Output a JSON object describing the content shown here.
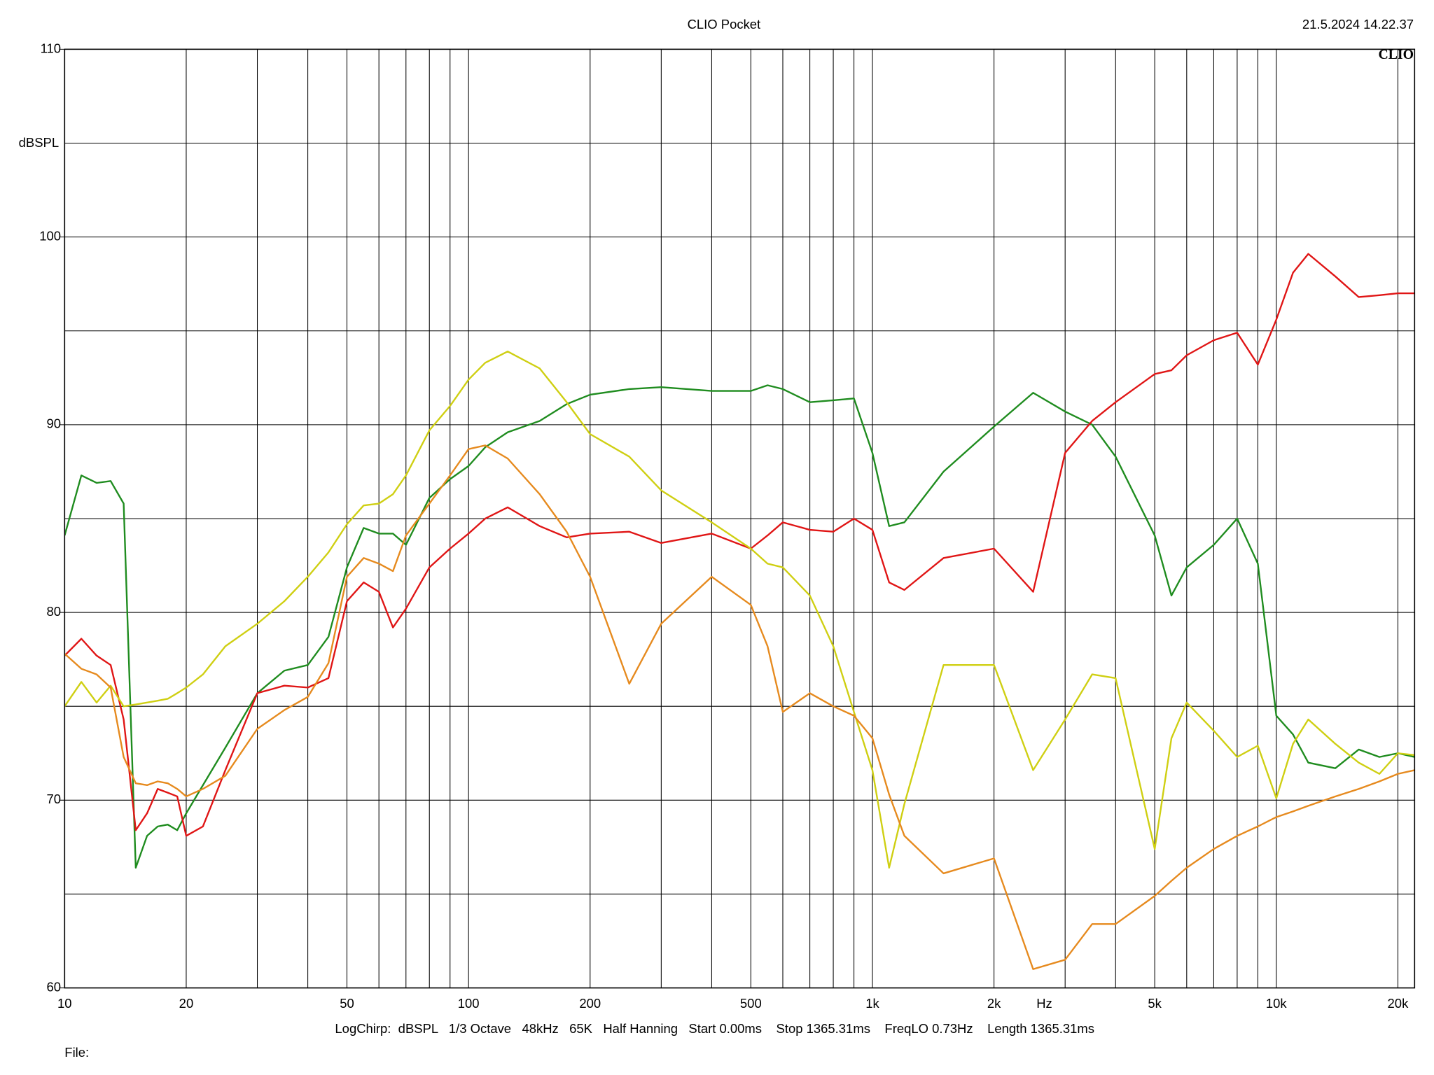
{
  "chart_data": {
    "type": "line",
    "title": "CLIO Pocket",
    "timestamp": "21.5.2024 14.22.37",
    "logo": "CLIO",
    "y_label": "dBSPL",
    "x_unit_label": "Hz",
    "info": "LogChirp:  dBSPL   1/3 Octave   48kHz   65K   Half Hanning   Start 0.00ms    Stop 1365.31ms    FreqLO 0.73Hz    Length 1365.31ms",
    "file_label": "File:",
    "xscale": "log",
    "grid": true,
    "xlim": [
      10,
      22000
    ],
    "ylim": [
      60,
      110
    ],
    "xticks": [
      10,
      20,
      50,
      100,
      200,
      500,
      {
        "value": 1000,
        "label": "1k"
      },
      {
        "value": 2000,
        "label": "2k"
      },
      {
        "value": 5000,
        "label": "5k"
      },
      {
        "value": 10000,
        "label": "10k"
      },
      {
        "value": 20000,
        "label": "20k"
      }
    ],
    "xgrid_minor": [
      30,
      40,
      60,
      70,
      80,
      90,
      300,
      400,
      600,
      700,
      800,
      900,
      3000,
      4000,
      6000,
      7000,
      8000,
      9000
    ],
    "yticks": [
      60,
      70,
      80,
      90,
      100,
      110
    ],
    "ygrid_minor": [
      65,
      75,
      85,
      95,
      105
    ],
    "x": [
      10,
      11,
      12,
      13,
      14,
      15,
      16,
      17,
      18,
      19,
      20,
      22,
      25,
      30,
      35,
      40,
      45,
      50,
      55,
      60,
      65,
      70,
      80,
      90,
      100,
      110,
      125,
      150,
      175,
      200,
      250,
      300,
      400,
      500,
      550,
      600,
      700,
      800,
      900,
      1000,
      1100,
      1200,
      1500,
      2000,
      2500,
      3000,
      3500,
      4000,
      5000,
      5500,
      6000,
      7000,
      8000,
      9000,
      10000,
      11000,
      12000,
      14000,
      16000,
      18000,
      20000,
      22000
    ],
    "series": [
      {
        "name": "green",
        "color": "#1f8c1f",
        "values": [
          84.1,
          87.3,
          86.9,
          87.0,
          85.8,
          66.4,
          68.1,
          68.6,
          68.7,
          68.4,
          69.3,
          70.8,
          72.8,
          75.7,
          76.9,
          77.2,
          78.7,
          82.4,
          84.5,
          84.2,
          84.2,
          83.6,
          86.1,
          87.1,
          87.8,
          88.8,
          89.6,
          90.2,
          91.1,
          91.6,
          91.9,
          92.0,
          91.8,
          91.8,
          92.1,
          91.9,
          91.2,
          91.3,
          91.4,
          88.5,
          84.6,
          84.8,
          87.5,
          89.9,
          91.7,
          90.7,
          90.0,
          88.3,
          84.1,
          80.9,
          82.4,
          83.6,
          85.0,
          82.6,
          74.5,
          73.5,
          72.0,
          71.7,
          72.7,
          72.3,
          72.5,
          72.3
        ]
      },
      {
        "name": "red",
        "color": "#e01515",
        "values": [
          77.7,
          78.6,
          77.7,
          77.2,
          74.3,
          68.4,
          69.3,
          70.6,
          70.4,
          70.2,
          68.1,
          68.6,
          71.6,
          75.7,
          76.1,
          76.0,
          76.5,
          80.6,
          81.6,
          81.1,
          79.2,
          80.2,
          82.4,
          83.4,
          84.2,
          85.0,
          85.6,
          84.6,
          84.0,
          84.2,
          84.3,
          83.7,
          84.2,
          83.4,
          84.1,
          84.8,
          84.4,
          84.3,
          85.0,
          84.4,
          81.6,
          81.2,
          82.9,
          83.4,
          81.1,
          88.5,
          90.2,
          91.2,
          92.7,
          92.9,
          93.7,
          94.5,
          94.9,
          93.2,
          95.6,
          98.1,
          99.1,
          97.9,
          96.8,
          96.9,
          97.0,
          97.0
        ]
      },
      {
        "name": "yellow",
        "color": "#cfcf12",
        "values": [
          75.0,
          76.3,
          75.2,
          76.1,
          75.0,
          75.1,
          75.2,
          75.3,
          75.4,
          75.7,
          76.0,
          76.7,
          78.2,
          79.4,
          80.6,
          81.9,
          83.2,
          84.7,
          85.7,
          85.8,
          86.3,
          87.3,
          89.7,
          91.0,
          92.4,
          93.3,
          93.9,
          93.0,
          91.2,
          89.5,
          88.3,
          86.5,
          84.8,
          83.4,
          82.6,
          82.4,
          80.9,
          78.2,
          74.7,
          71.6,
          66.4,
          69.8,
          77.2,
          77.2,
          71.6,
          74.3,
          76.7,
          76.5,
          67.4,
          73.3,
          75.2,
          73.7,
          72.3,
          72.9,
          70.1,
          73.0,
          74.3,
          73.0,
          72.0,
          71.4,
          72.5,
          72.4
        ]
      },
      {
        "name": "orange",
        "color": "#e68a1e",
        "values": [
          77.8,
          77.0,
          76.7,
          76.0,
          72.3,
          70.9,
          70.8,
          71.0,
          70.9,
          70.6,
          70.2,
          70.6,
          71.3,
          73.8,
          74.8,
          75.5,
          77.3,
          81.9,
          82.9,
          82.6,
          82.2,
          84.1,
          85.8,
          87.3,
          88.7,
          88.9,
          88.2,
          86.3,
          84.3,
          81.9,
          76.2,
          79.4,
          81.9,
          80.4,
          78.2,
          74.7,
          75.7,
          75.0,
          74.5,
          73.3,
          70.3,
          68.1,
          66.1,
          66.9,
          61.0,
          61.5,
          63.4,
          63.4,
          64.9,
          65.7,
          66.4,
          67.4,
          68.1,
          68.6,
          69.1,
          69.4,
          69.7,
          70.2,
          70.6,
          71.0,
          71.4,
          71.6
        ]
      }
    ]
  }
}
